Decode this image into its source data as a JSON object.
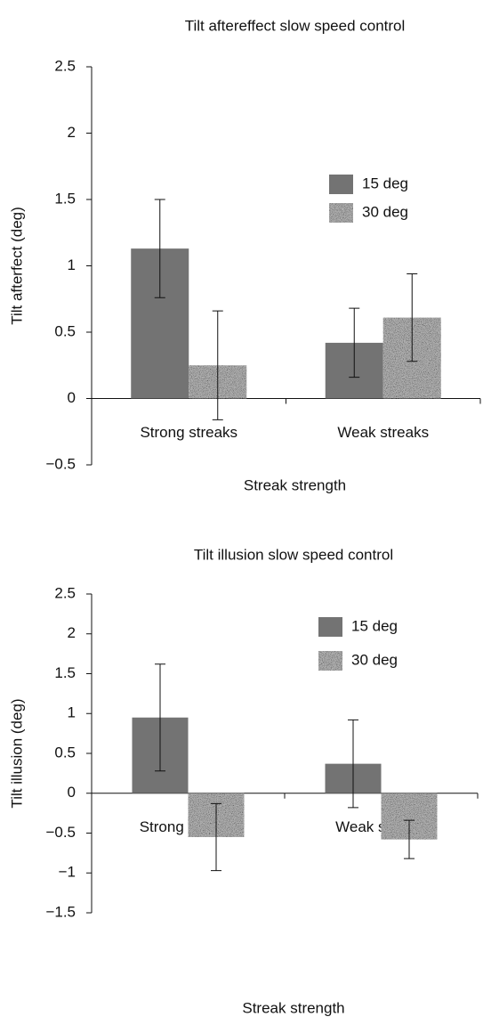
{
  "chart_data": [
    {
      "type": "bar",
      "title": "Tilt aftereffect slow speed control",
      "xlabel": "Streak strength",
      "ylabel": "Tilt afterfect (deg)",
      "categories": [
        "Strong streaks",
        "Weak streaks"
      ],
      "series": [
        {
          "name": "15 deg",
          "color": "#737373",
          "values": [
            1.13,
            0.42
          ],
          "errors": [
            0.37,
            0.26
          ]
        },
        {
          "name": "30 deg",
          "color": "#b0b0b0",
          "texture": "noise",
          "values": [
            0.25,
            0.61
          ],
          "errors": [
            0.41,
            0.33
          ]
        }
      ],
      "ylim": [
        -0.5,
        2.5
      ],
      "yticks": [
        {
          "value": -0.5,
          "label": "−0.5"
        },
        0,
        0.5,
        1,
        1.5,
        2,
        2.5
      ]
    },
    {
      "type": "bar",
      "title": "Tilt illusion slow speed control",
      "xlabel": "Streak strength",
      "ylabel": "Tilt illusion (deg)",
      "categories": [
        "Strong streaks",
        "Weak streaks"
      ],
      "series": [
        {
          "name": "15 deg",
          "color": "#737373",
          "values": [
            0.95,
            0.37
          ],
          "errors": [
            0.67,
            0.55
          ]
        },
        {
          "name": "30 deg",
          "color": "#b0b0b0",
          "texture": "noise",
          "values": [
            -0.55,
            -0.58
          ],
          "errors": [
            0.42,
            0.24
          ]
        }
      ],
      "ylim": [
        -1.5,
        2.5
      ],
      "yticks": [
        {
          "value": -1.5,
          "label": "−1.5"
        },
        {
          "value": -1,
          "label": "−1"
        },
        {
          "value": -0.5,
          "label": "−0.5"
        },
        0,
        0.5,
        1,
        1.5,
        2,
        2.5
      ]
    }
  ]
}
